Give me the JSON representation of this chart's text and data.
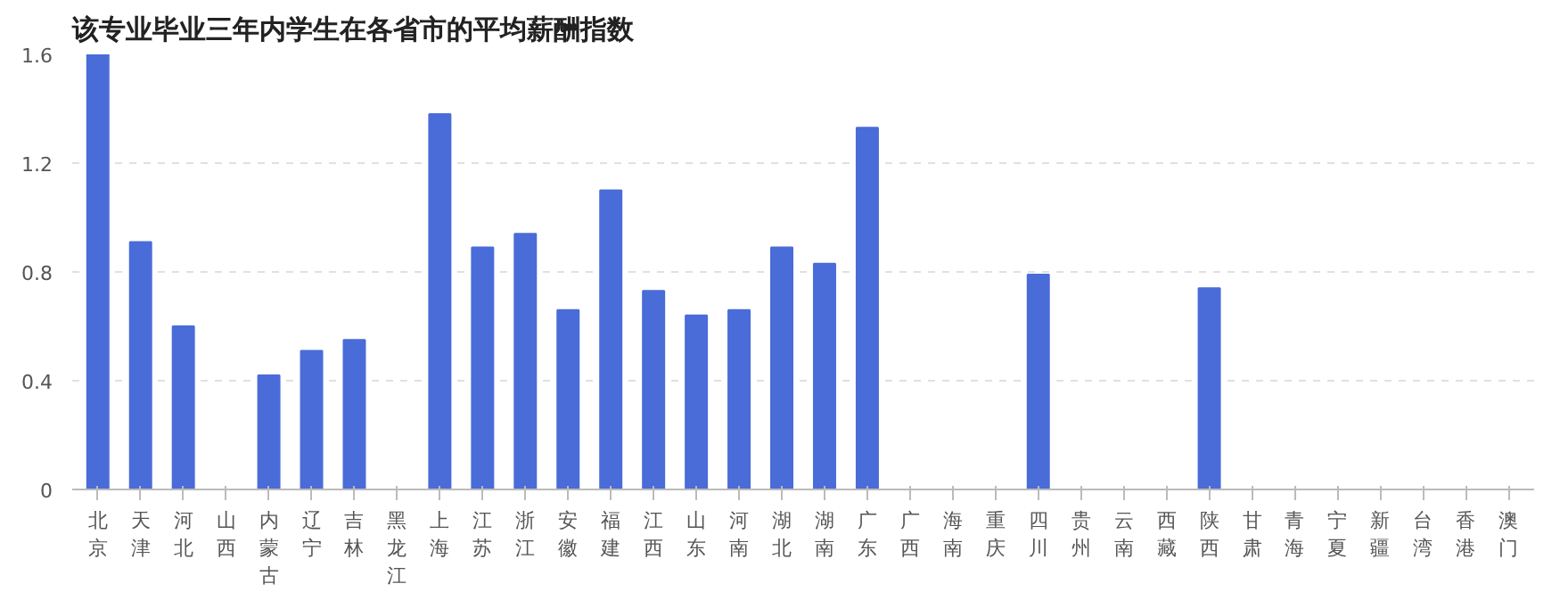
{
  "chart_data": {
    "type": "bar",
    "title": "该专业毕业三年内学生在各省市的平均薪酬指数",
    "categories": [
      "北京",
      "天津",
      "河北",
      "山西",
      "内蒙古",
      "辽宁",
      "吉林",
      "黑龙江",
      "上海",
      "江苏",
      "浙江",
      "安徽",
      "福建",
      "江西",
      "山东",
      "河南",
      "湖北",
      "湖南",
      "广东",
      "广西",
      "海南",
      "重庆",
      "四川",
      "贵州",
      "云南",
      "西藏",
      "陕西",
      "甘肃",
      "青海",
      "宁夏",
      "新疆",
      "台湾",
      "香港",
      "澳门"
    ],
    "values": [
      1.6,
      0.91,
      0.6,
      0,
      0.42,
      0.51,
      0.55,
      0,
      1.38,
      0.89,
      0.94,
      0.66,
      1.1,
      0.73,
      0.64,
      0.66,
      0.89,
      0.83,
      1.33,
      0,
      0,
      0,
      0.79,
      0,
      0,
      0,
      0.74,
      0,
      0,
      0,
      0,
      0,
      0,
      0
    ],
    "color": "#4a6cd8",
    "ylim": [
      0,
      1.6
    ],
    "yticks": [
      0,
      0.4,
      0.8,
      1.2,
      1.6
    ],
    "grid": "y"
  }
}
